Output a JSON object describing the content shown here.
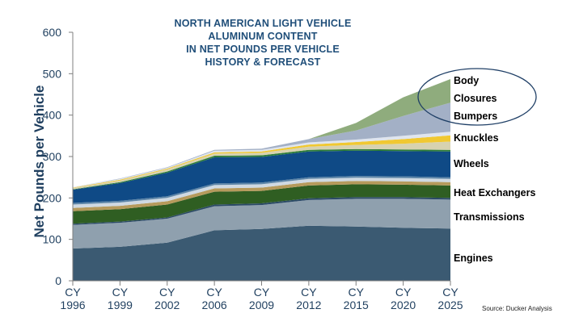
{
  "chart_data": {
    "type": "area",
    "stacked": true,
    "title_lines": [
      "NORTH AMERICAN LIGHT VEHICLE",
      "ALUMINUM CONTENT",
      "IN NET POUNDS PER VEHICLE",
      "HISTORY & FORECAST"
    ],
    "ylabel": "Net Pounds per Vehicle",
    "xlabel": "",
    "ylim": [
      0,
      600
    ],
    "yticks": [
      0,
      100,
      200,
      300,
      400,
      500,
      600
    ],
    "grid": false,
    "categories": [
      [
        "CY",
        "1996"
      ],
      [
        "CY",
        "1999"
      ],
      [
        "CY",
        "2002"
      ],
      [
        "CY",
        "2006"
      ],
      [
        "CY",
        "2009"
      ],
      [
        "CY",
        "2012"
      ],
      [
        "CY",
        "2015"
      ],
      [
        "CY",
        "2020"
      ],
      [
        "CY",
        "2025"
      ]
    ],
    "series": [
      {
        "name": "Engines",
        "color": "#3b5a72",
        "values": [
          78,
          82,
          92,
          122,
          125,
          133,
          131,
          128,
          126
        ]
      },
      {
        "name": "Transmissions",
        "color": "#8fa0ae",
        "values": [
          57,
          58,
          58,
          58,
          58,
          62,
          67,
          70,
          70
        ]
      },
      {
        "name": "",
        "color": "#2b4a66",
        "values": [
          3,
          3,
          3,
          4,
          4,
          4,
          4,
          4,
          4
        ]
      },
      {
        "name": "Heat Exchangers",
        "color": "#2f5e22",
        "values": [
          30,
          30,
          31,
          31,
          30,
          31,
          31,
          30,
          30
        ]
      },
      {
        "name": "",
        "color": "#b69a5c",
        "values": [
          8,
          8,
          8,
          8,
          8,
          8,
          8,
          8,
          8
        ]
      },
      {
        "name": "",
        "color": "#cfd9e2",
        "values": [
          8,
          8,
          8,
          8,
          8,
          8,
          8,
          8,
          8
        ]
      },
      {
        "name": "",
        "color": "#5e86a8",
        "values": [
          4,
          4,
          4,
          4,
          4,
          4,
          4,
          4,
          4
        ]
      },
      {
        "name": "Wheels",
        "color": "#0f4a86",
        "values": [
          32,
          43,
          57,
          63,
          62,
          62,
          61,
          61,
          62
        ]
      },
      {
        "name": "",
        "color": "#2e7d3a",
        "values": [
          1,
          2,
          3,
          4,
          4,
          4,
          4,
          4,
          4
        ]
      },
      {
        "name": "Knuckles",
        "color": "#d7d2b0",
        "values": [
          3,
          4,
          5,
          5,
          6,
          8,
          10,
          14,
          20
        ]
      },
      {
        "name": "Bumpers",
        "color": "#f0c832",
        "values": [
          1,
          2,
          2,
          3,
          3,
          5,
          7,
          11,
          15
        ]
      },
      {
        "name": "",
        "color": "#dfe5ee",
        "values": [
          1,
          2,
          2,
          4,
          4,
          5,
          6,
          8,
          9
        ]
      },
      {
        "name": "Closures",
        "color": "#a3b0c6",
        "values": [
          0,
          1,
          1,
          2,
          3,
          8,
          22,
          48,
          70
        ]
      },
      {
        "name": "Body",
        "color": "#8fac7d",
        "values": [
          0,
          0,
          0,
          0,
          0,
          0,
          18,
          45,
          57
        ]
      }
    ],
    "annotations": [
      "Source: Ducker Analysis"
    ]
  }
}
